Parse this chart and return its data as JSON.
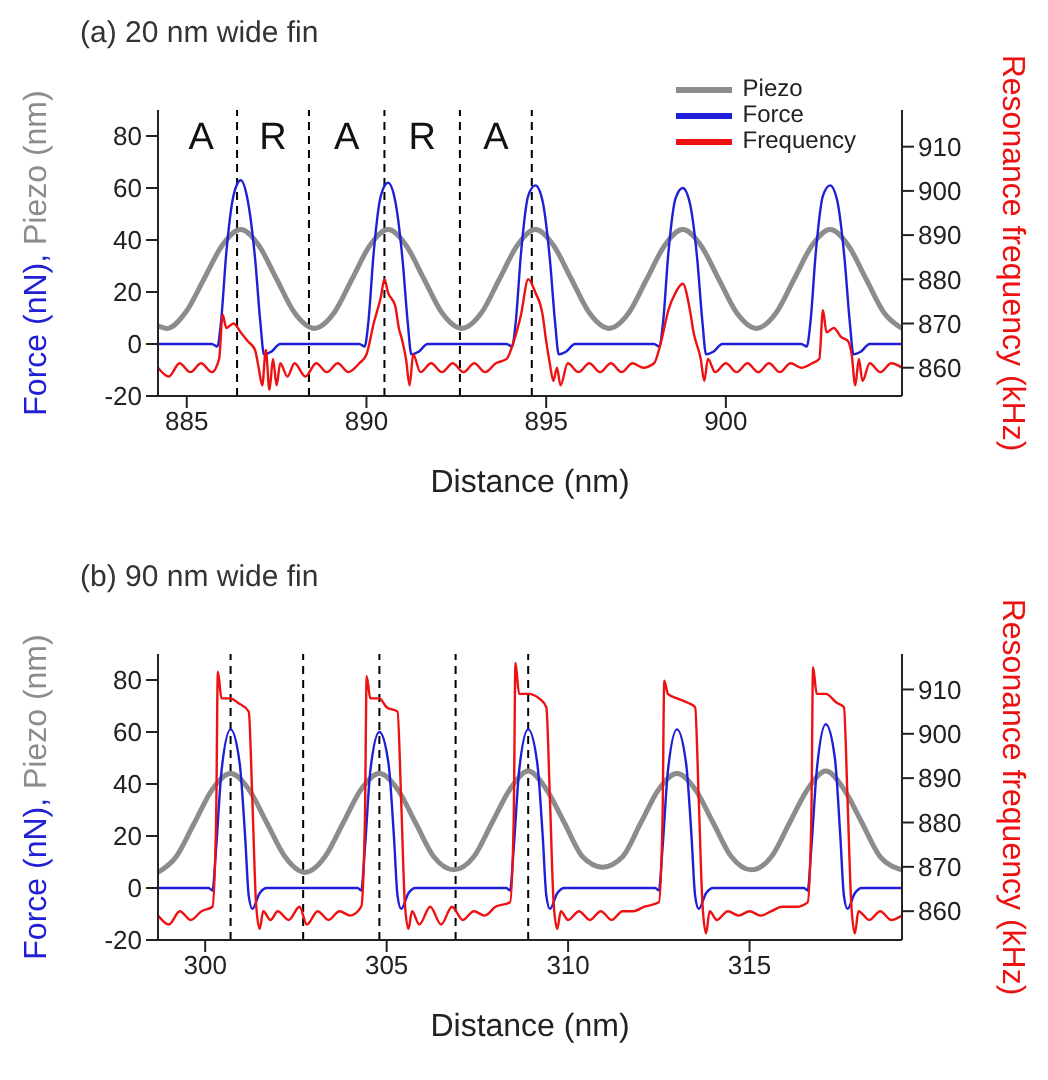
{
  "chart_data": [
    {
      "type": "line",
      "title": "(a) 20 nm wide fin",
      "xlabel": "Distance (nm)",
      "ylabel": "Force (nN), Piezo (nm)",
      "y2label": "Resonance frequency (kHz)",
      "xlim": [
        884.2,
        904.9
      ],
      "xticks": [
        885,
        890,
        895,
        900
      ],
      "ylim": [
        -20,
        90
      ],
      "yticks": [
        -20,
        0,
        20,
        40,
        60,
        80
      ],
      "y2lim": [
        853.6,
        918.3
      ],
      "y2ticks": [
        860,
        870,
        880,
        890,
        900,
        910
      ],
      "legend": "top right",
      "line_style": "solid",
      "series": [
        {
          "name": "Piezo",
          "color": "#8c8c8c",
          "x": [
            884.2,
            884.45,
            884.96,
            885.48,
            885.99,
            886.5,
            887.0,
            887.5,
            888.0,
            888.55,
            889.1,
            889.6,
            890.1,
            890.6,
            891.1,
            891.6,
            892.1,
            892.65,
            893.2,
            893.7,
            894.2,
            894.7,
            895.2,
            895.7,
            896.2,
            896.75,
            897.3,
            897.8,
            898.3,
            898.8,
            899.3,
            899.8,
            900.3,
            900.85,
            901.4,
            901.9,
            902.4,
            902.9,
            903.4,
            903.9,
            904.4,
            904.9
          ],
          "values": [
            7,
            6,
            12,
            25,
            38,
            44,
            38,
            25,
            12,
            6,
            12,
            25,
            38,
            44,
            38,
            25,
            12,
            6,
            12,
            25,
            38,
            44,
            38,
            25,
            12,
            6,
            12,
            25,
            38,
            44,
            38,
            25,
            12,
            6,
            12,
            25,
            38,
            44,
            38,
            25,
            12,
            6
          ]
        },
        {
          "name": "Force",
          "color": "#1f1fd6",
          "x": [
            884.2,
            885.7,
            885.85,
            885.95,
            886.1,
            886.3,
            886.5,
            886.7,
            886.9,
            887.05,
            887.15,
            887.35,
            887.6,
            889.8,
            889.95,
            890.05,
            890.2,
            890.4,
            890.6,
            890.8,
            891.0,
            891.15,
            891.25,
            891.45,
            891.7,
            893.9,
            894.05,
            894.15,
            894.3,
            894.5,
            894.7,
            894.9,
            895.1,
            895.25,
            895.35,
            895.55,
            895.8,
            898.0,
            898.15,
            898.25,
            898.4,
            898.6,
            898.8,
            899.0,
            899.2,
            899.35,
            899.45,
            899.65,
            899.9,
            902.1,
            902.25,
            902.35,
            902.5,
            902.7,
            902.9,
            903.1,
            903.3,
            903.45,
            903.55,
            903.75,
            904.0,
            904.9
          ],
          "values": [
            0,
            0,
            -1,
            8,
            35,
            57,
            63,
            55,
            33,
            8,
            -4,
            -3,
            0,
            0,
            -1,
            8,
            35,
            57,
            62,
            55,
            33,
            8,
            -4,
            -3,
            0,
            0,
            -1,
            8,
            35,
            57,
            61,
            55,
            33,
            8,
            -4,
            -3,
            0,
            0,
            -1,
            8,
            35,
            56,
            60,
            54,
            33,
            8,
            -4,
            -3,
            0,
            0,
            -1,
            8,
            35,
            57,
            61,
            55,
            33,
            8,
            -4,
            -3,
            0,
            0
          ]
        },
        {
          "name": "Frequency",
          "color": "#ee1111",
          "axis": "y2",
          "x": [
            884.2,
            884.5,
            884.8,
            885.1,
            885.4,
            885.7,
            885.9,
            886.0,
            886.1,
            886.3,
            886.5,
            886.7,
            886.9,
            887.0,
            887.1,
            887.2,
            887.3,
            887.4,
            887.5,
            887.6,
            887.8,
            888.0,
            888.3,
            888.6,
            888.9,
            889.2,
            889.5,
            889.8,
            890.0,
            890.2,
            890.4,
            890.5,
            890.6,
            890.8,
            890.9,
            891.0,
            891.1,
            891.2,
            891.3,
            891.5,
            891.8,
            892.1,
            892.4,
            892.7,
            893.0,
            893.3,
            893.6,
            893.9,
            894.1,
            894.3,
            894.5,
            894.7,
            894.9,
            895.0,
            895.1,
            895.2,
            895.3,
            895.4,
            895.6,
            895.9,
            896.2,
            896.5,
            896.8,
            897.1,
            897.4,
            897.7,
            898.0,
            898.2,
            898.4,
            898.6,
            898.8,
            899.0,
            899.1,
            899.3,
            899.4,
            899.5,
            899.7,
            900.0,
            900.3,
            900.6,
            900.9,
            901.2,
            901.5,
            901.8,
            902.1,
            902.4,
            902.6,
            902.7,
            902.8,
            903.0,
            903.2,
            903.4,
            903.5,
            903.6,
            903.7,
            903.8,
            904.0,
            904.3,
            904.6,
            904.9
          ],
          "values": [
            860,
            858,
            861,
            859,
            861,
            859,
            862,
            872,
            869,
            870,
            868,
            866,
            864,
            860,
            856,
            864,
            855,
            862,
            856,
            861,
            858,
            861,
            858,
            861,
            859,
            861,
            859,
            861,
            863,
            870,
            876,
            880,
            877,
            874,
            869,
            866,
            862,
            856,
            863,
            859,
            861,
            859,
            861,
            859,
            861,
            859,
            861,
            862,
            866,
            872,
            880,
            877,
            872,
            866,
            861,
            857,
            860,
            856,
            861,
            859,
            861,
            859,
            861,
            859,
            861,
            860,
            861,
            866,
            873,
            877,
            879,
            873,
            868,
            862,
            857,
            862,
            859,
            861,
            859,
            861,
            859,
            861,
            859,
            861,
            860,
            861,
            862,
            873,
            868,
            869,
            867,
            866,
            863,
            856,
            862,
            857,
            861,
            859,
            861,
            860
          ]
        }
      ],
      "ref_lines": [
        {
          "axis": "x",
          "value": 886.4,
          "color": "#000000",
          "line_style": "dashed"
        },
        {
          "axis": "x",
          "value": 888.4,
          "color": "#000000",
          "line_style": "dashed"
        },
        {
          "axis": "x",
          "value": 890.5,
          "color": "#000000",
          "line_style": "dashed"
        },
        {
          "axis": "x",
          "value": 892.6,
          "color": "#000000",
          "line_style": "dashed"
        },
        {
          "axis": "x",
          "value": 894.6,
          "color": "#000000",
          "line_style": "dashed"
        }
      ],
      "annotations": [
        "A",
        "R",
        "A",
        "R",
        "A"
      ]
    },
    {
      "type": "line",
      "title": "(b) 90 nm wide fin",
      "xlabel": "Distance (nm)",
      "ylabel": "Force (nN), Piezo (nm)",
      "y2label": "Resonance frequency (kHz)",
      "xlim": [
        298.7,
        319.2
      ],
      "xticks": [
        300,
        305,
        310,
        315
      ],
      "ylim": [
        -20,
        90
      ],
      "yticks": [
        -20,
        0,
        20,
        40,
        60,
        80
      ],
      "y2lim": [
        853.5,
        918
      ],
      "y2ticks": [
        860,
        870,
        880,
        890,
        900,
        910
      ],
      "line_style": "solid",
      "series": [
        {
          "color": "#8c8c8c",
          "x": [
            298.7,
            299.2,
            299.7,
            300.2,
            300.7,
            301.2,
            301.7,
            302.2,
            302.75,
            303.3,
            303.8,
            304.3,
            304.8,
            305.3,
            305.8,
            306.3,
            306.85,
            307.4,
            307.9,
            308.4,
            308.9,
            309.4,
            309.9,
            310.4,
            310.95,
            311.5,
            312.0,
            312.5,
            313.0,
            313.5,
            314.0,
            314.5,
            315.05,
            315.6,
            316.1,
            316.6,
            317.1,
            317.6,
            318.1,
            318.6,
            319.2
          ],
          "values": [
            6,
            12,
            25,
            38,
            44,
            38,
            25,
            12,
            6,
            12,
            25,
            38,
            44,
            38,
            25,
            12,
            7,
            12,
            25,
            38,
            45,
            38,
            25,
            12,
            8,
            12,
            25,
            38,
            44,
            38,
            25,
            12,
            7,
            12,
            25,
            38,
            45,
            38,
            25,
            12,
            7
          ]
        },
        {
          "color": "#1f1fd6",
          "x": [
            298.7,
            300.1,
            300.2,
            300.3,
            300.45,
            300.7,
            300.95,
            301.1,
            301.2,
            301.3,
            301.5,
            301.7,
            304.2,
            304.3,
            304.4,
            304.55,
            304.8,
            305.05,
            305.2,
            305.3,
            305.4,
            305.6,
            305.8,
            308.3,
            308.4,
            308.5,
            308.65,
            308.9,
            309.15,
            309.3,
            309.4,
            309.5,
            309.7,
            309.9,
            312.4,
            312.5,
            312.6,
            312.75,
            313.0,
            313.25,
            313.4,
            313.5,
            313.6,
            313.8,
            314.0,
            316.5,
            316.6,
            316.7,
            316.85,
            317.1,
            317.35,
            317.5,
            317.6,
            317.7,
            317.9,
            318.1,
            319.2
          ],
          "values": [
            0,
            0,
            -1,
            15,
            45,
            61,
            48,
            20,
            -3,
            -8,
            -2,
            0,
            0,
            -1,
            15,
            45,
            60,
            48,
            20,
            -3,
            -8,
            -2,
            0,
            0,
            -1,
            15,
            45,
            61,
            48,
            20,
            -3,
            -8,
            -2,
            0,
            0,
            -1,
            15,
            45,
            61,
            48,
            20,
            -3,
            -8,
            -2,
            0,
            0,
            -1,
            15,
            45,
            63,
            50,
            20,
            -3,
            -8,
            -2,
            0,
            0
          ]
        },
        {
          "color": "#ee1111",
          "axis": "y2",
          "x": [
            298.7,
            299.0,
            299.3,
            299.6,
            299.9,
            300.2,
            300.3,
            300.35,
            300.45,
            300.7,
            300.9,
            301.2,
            301.3,
            301.4,
            301.5,
            301.6,
            301.8,
            302.0,
            302.3,
            302.6,
            302.8,
            303.1,
            303.4,
            303.7,
            304.0,
            304.3,
            304.4,
            304.45,
            304.55,
            304.8,
            305.0,
            305.3,
            305.4,
            305.5,
            305.6,
            305.7,
            305.9,
            306.2,
            306.5,
            306.8,
            307.1,
            307.4,
            307.7,
            308.0,
            308.4,
            308.5,
            308.55,
            308.65,
            308.9,
            309.2,
            309.4,
            309.5,
            309.6,
            309.7,
            309.8,
            310.0,
            310.3,
            310.6,
            310.9,
            311.2,
            311.5,
            311.8,
            312.1,
            312.5,
            312.6,
            312.65,
            312.75,
            313.0,
            313.3,
            313.5,
            313.6,
            313.7,
            313.8,
            313.9,
            314.1,
            314.4,
            314.7,
            315.0,
            315.3,
            315.6,
            315.9,
            316.3,
            316.6,
            316.7,
            316.75,
            316.85,
            317.1,
            317.4,
            317.6,
            317.7,
            317.8,
            317.9,
            318.0,
            318.3,
            318.6,
            318.9,
            319.2
          ],
          "values": [
            859,
            857,
            860,
            858,
            860,
            861,
            880,
            914,
            908,
            908,
            907,
            905,
            885,
            862,
            856,
            860,
            858,
            860,
            858,
            861,
            857,
            860,
            858,
            860,
            859,
            861,
            880,
            913,
            908,
            908,
            906,
            905,
            885,
            862,
            856,
            860,
            857,
            861,
            857,
            861,
            858,
            860,
            859,
            861,
            862,
            880,
            916,
            909,
            909,
            908,
            906,
            885,
            862,
            856,
            860,
            858,
            860,
            858,
            860,
            858,
            860,
            860,
            861,
            862,
            880,
            912,
            909,
            908,
            907,
            906,
            885,
            862,
            855,
            860,
            858,
            860,
            859,
            860,
            859,
            860,
            861,
            861,
            862,
            880,
            915,
            909,
            909,
            907,
            906,
            885,
            862,
            855,
            860,
            858,
            860,
            858,
            859
          ]
        }
      ],
      "ref_lines": [
        {
          "axis": "x",
          "value": 300.7,
          "color": "#000000",
          "line_style": "dashed"
        },
        {
          "axis": "x",
          "value": 302.7,
          "color": "#000000",
          "line_style": "dashed"
        },
        {
          "axis": "x",
          "value": 304.8,
          "color": "#000000",
          "line_style": "dashed"
        },
        {
          "axis": "x",
          "value": 306.9,
          "color": "#000000",
          "line_style": "dashed"
        },
        {
          "axis": "x",
          "value": 308.9,
          "color": "#000000",
          "line_style": "dashed"
        }
      ]
    }
  ]
}
